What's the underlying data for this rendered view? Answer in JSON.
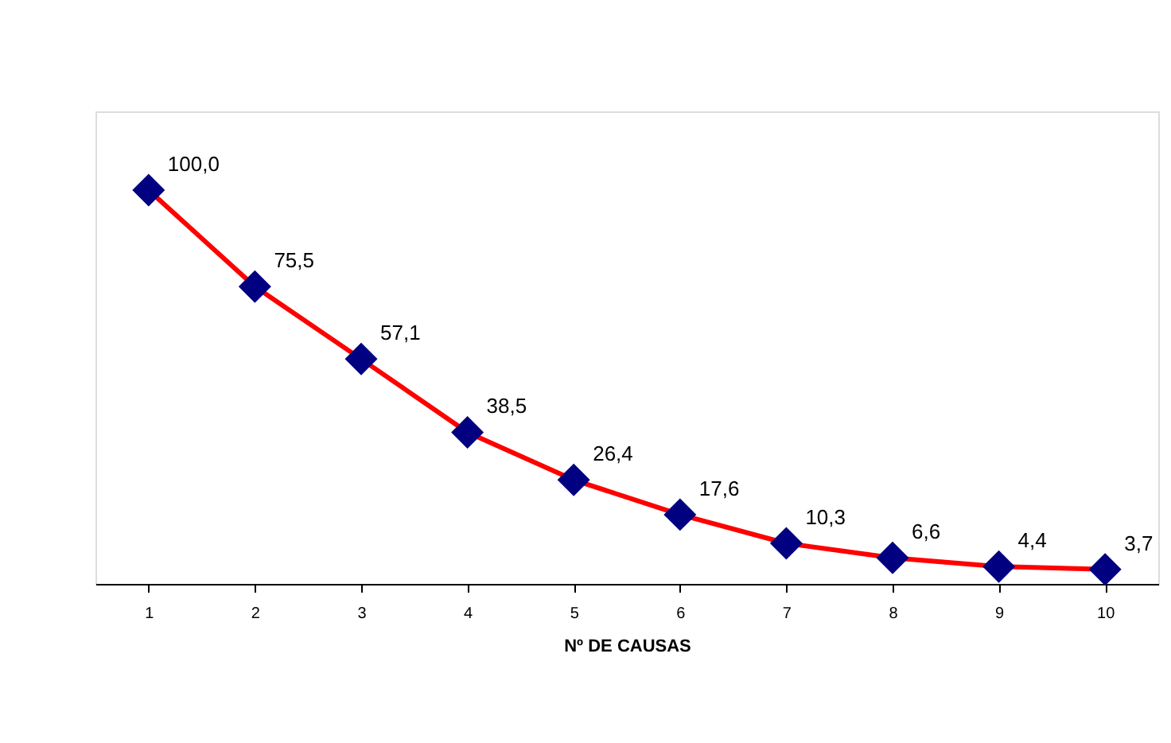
{
  "chart_data": {
    "type": "line",
    "xlabel": "Nº DE CAUSAS",
    "categories": [
      "1",
      "2",
      "3",
      "4",
      "5",
      "6",
      "7",
      "8",
      "9",
      "10"
    ],
    "series": [
      {
        "color": "#ff0000",
        "values": [
          100.0,
          75.5,
          57.1,
          38.5,
          26.4,
          17.6,
          10.3,
          6.6,
          4.4,
          3.7
        ],
        "value_labels": [
          "100,0",
          "75,5",
          "57,1",
          "38,5",
          "26,4",
          "17,6",
          "10,3",
          "6,6",
          "4,4",
          "3,7"
        ]
      }
    ],
    "marker": "diamond",
    "line_style": "solid",
    "grid": false,
    "tick_labels": "x"
  }
}
